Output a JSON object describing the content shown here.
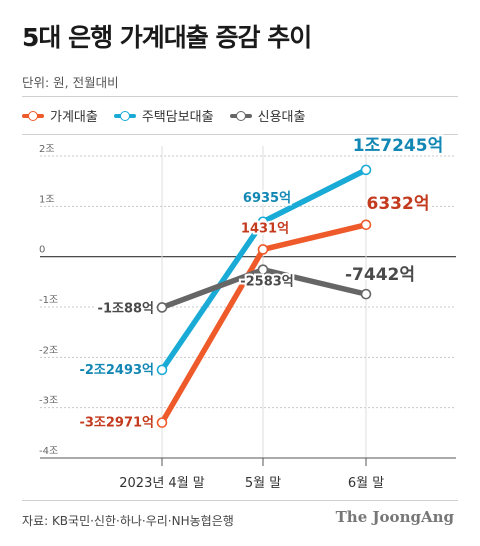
{
  "title": "5대 은행 가계대출 증감 추이",
  "unit_label": "단위: 원, 전월대비",
  "legend": [
    {
      "label": "가계대출",
      "color": "#ee5a2a"
    },
    {
      "label": "주택담보대출",
      "color": "#19abd6"
    },
    {
      "label": "신용대출",
      "color": "#666666"
    }
  ],
  "source": "자료: KB국민·신한·하나·우리·NH농협은행",
  "brand": "The JoongAng",
  "chart_data": {
    "type": "line",
    "title": "5대 은행 가계대출 증감 추이",
    "x": [
      "2023년 4월 말",
      "5월 말",
      "6월 말"
    ],
    "y_ticks": [
      {
        "value": 2,
        "label": "2조"
      },
      {
        "value": 1,
        "label": "1조"
      },
      {
        "value": 0,
        "label": "0"
      },
      {
        "value": -1,
        "label": "-1조"
      },
      {
        "value": -2,
        "label": "-2조"
      },
      {
        "value": -3,
        "label": "-3조"
      },
      {
        "value": -4,
        "label": "-4조"
      }
    ],
    "ylim": [
      -4,
      2
    ],
    "grid": true,
    "series": [
      {
        "name": "주택담보대출",
        "color": "#19abd6",
        "values": [
          -2.2493,
          0.6935,
          1.7245
        ],
        "labels": [
          "-2조2493억",
          "6935억",
          "1조7245억"
        ]
      },
      {
        "name": "가계대출",
        "color": "#ee5a2a",
        "values": [
          -3.2971,
          0.1431,
          0.6332
        ],
        "labels": [
          "-3조2971억",
          "1431억",
          "6332억"
        ]
      },
      {
        "name": "신용대출",
        "color": "#666666",
        "values": [
          -1.0088,
          -0.2583,
          -0.7442
        ],
        "labels": [
          "-1조88억",
          "-2583억",
          "-7442억"
        ]
      }
    ]
  }
}
